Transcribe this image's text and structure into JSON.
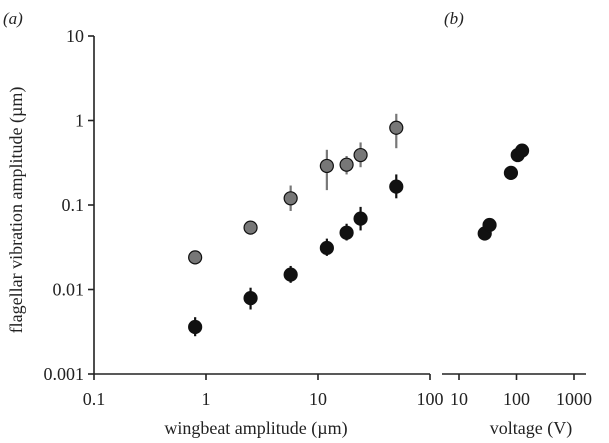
{
  "chart_data": [
    {
      "panel_label": "(a)",
      "type": "scatter",
      "xlabel": "wingbeat amplitude (µm)",
      "ylabel": "flagellar vibration amplitude (µm)",
      "xscale": "log",
      "yscale": "log",
      "xlim": [
        0.1,
        100
      ],
      "ylim": [
        0.001,
        10
      ],
      "x_tick_labels": [
        "0.1",
        "1",
        "10",
        "100"
      ],
      "y_tick_labels": [
        "0.001",
        "0.01",
        "0.1",
        "1",
        "10"
      ],
      "grid": false,
      "series": [
        {
          "color": "#777777",
          "points": [
            {
              "x": 0.8,
              "y": 0.024
            },
            {
              "x": 2.5,
              "y": 0.054
            },
            {
              "x": 5.7,
              "y": 0.12,
              "y_low": 0.085,
              "y_high": 0.17
            },
            {
              "x": 12,
              "y": 0.29,
              "y_low": 0.15,
              "y_high": 0.45
            },
            {
              "x": 18,
              "y": 0.3,
              "y_low": 0.23,
              "y_high": 0.38
            },
            {
              "x": 24,
              "y": 0.39,
              "y_low": 0.28,
              "y_high": 0.55
            },
            {
              "x": 50,
              "y": 0.82,
              "y_low": 0.47,
              "y_high": 1.2
            }
          ]
        },
        {
          "color": "#111111",
          "points": [
            {
              "x": 0.8,
              "y": 0.0036,
              "y_low": 0.0028,
              "y_high": 0.0047
            },
            {
              "x": 2.5,
              "y": 0.0079,
              "y_low": 0.0058,
              "y_high": 0.0105
            },
            {
              "x": 5.7,
              "y": 0.015,
              "y_low": 0.012,
              "y_high": 0.019
            },
            {
              "x": 12,
              "y": 0.031,
              "y_low": 0.025,
              "y_high": 0.04
            },
            {
              "x": 18,
              "y": 0.047,
              "y_low": 0.038,
              "y_high": 0.06
            },
            {
              "x": 24,
              "y": 0.069,
              "y_low": 0.05,
              "y_high": 0.095
            },
            {
              "x": 50,
              "y": 0.165,
              "y_low": 0.12,
              "y_high": 0.23
            }
          ]
        }
      ]
    },
    {
      "panel_label": "(b)",
      "type": "scatter",
      "xlabel": "voltage (V)",
      "xscale": "log",
      "yscale": "log",
      "xlim": [
        10,
        1000
      ],
      "ylim": [
        0.001,
        10
      ],
      "x_tick_labels": [
        "10",
        "100",
        "1000"
      ],
      "grid": false,
      "series": [
        {
          "color": "#111111",
          "points": [
            {
              "x": 28,
              "y": 0.046
            },
            {
              "x": 34,
              "y": 0.058
            },
            {
              "x": 80,
              "y": 0.24
            },
            {
              "x": 105,
              "y": 0.39
            },
            {
              "x": 125,
              "y": 0.44
            }
          ]
        }
      ]
    }
  ]
}
